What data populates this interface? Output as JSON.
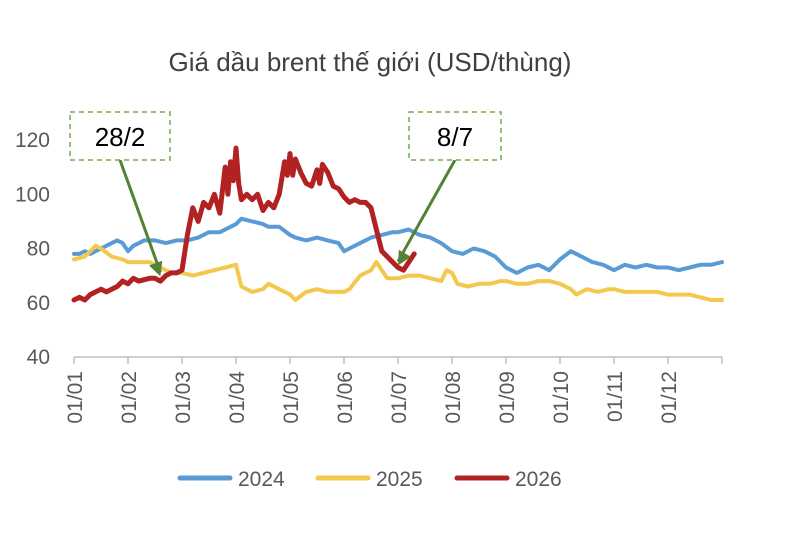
{
  "chart_data": {
    "type": "line",
    "title": "Giá dầu brent thế giới (USD/thùng)",
    "xlabel": "",
    "ylabel": "",
    "x_ticks": [
      "01/01",
      "01/02",
      "01/03",
      "01/04",
      "01/05",
      "01/06",
      "01/07",
      "01/08",
      "01/09",
      "01/10",
      "01/11",
      "01/12"
    ],
    "xlim_months": [
      1,
      13
    ],
    "ylim": [
      40,
      120
    ],
    "y_ticks": [
      40,
      60,
      80,
      100,
      120
    ],
    "grid": false,
    "legend": "bottom",
    "series": [
      {
        "name": "2024",
        "color": "#5B9BD5",
        "points": [
          [
            1.0,
            78
          ],
          [
            1.1,
            78
          ],
          [
            1.2,
            79
          ],
          [
            1.3,
            78
          ],
          [
            1.5,
            80
          ],
          [
            1.7,
            82
          ],
          [
            1.8,
            83
          ],
          [
            1.9,
            82
          ],
          [
            2.0,
            79
          ],
          [
            2.1,
            81
          ],
          [
            2.3,
            83
          ],
          [
            2.5,
            83
          ],
          [
            2.7,
            82
          ],
          [
            2.9,
            83
          ],
          [
            3.0,
            83
          ],
          [
            3.1,
            83
          ],
          [
            3.3,
            84
          ],
          [
            3.5,
            86
          ],
          [
            3.7,
            86
          ],
          [
            3.9,
            88
          ],
          [
            4.0,
            89
          ],
          [
            4.1,
            91
          ],
          [
            4.3,
            90
          ],
          [
            4.5,
            89
          ],
          [
            4.6,
            88
          ],
          [
            4.8,
            88
          ],
          [
            5.0,
            85
          ],
          [
            5.1,
            84
          ],
          [
            5.3,
            83
          ],
          [
            5.5,
            84
          ],
          [
            5.7,
            83
          ],
          [
            5.9,
            82
          ],
          [
            6.0,
            79
          ],
          [
            6.1,
            80
          ],
          [
            6.3,
            82
          ],
          [
            6.5,
            84
          ],
          [
            6.7,
            85
          ],
          [
            6.9,
            86
          ],
          [
            7.0,
            86
          ],
          [
            7.2,
            87
          ],
          [
            7.4,
            85
          ],
          [
            7.6,
            84
          ],
          [
            7.8,
            82
          ],
          [
            8.0,
            79
          ],
          [
            8.2,
            78
          ],
          [
            8.4,
            80
          ],
          [
            8.6,
            79
          ],
          [
            8.8,
            77
          ],
          [
            9.0,
            73
          ],
          [
            9.2,
            71
          ],
          [
            9.4,
            73
          ],
          [
            9.6,
            74
          ],
          [
            9.8,
            72
          ],
          [
            10.0,
            76
          ],
          [
            10.2,
            79
          ],
          [
            10.4,
            77
          ],
          [
            10.6,
            75
          ],
          [
            10.8,
            74
          ],
          [
            11.0,
            72
          ],
          [
            11.2,
            74
          ],
          [
            11.4,
            73
          ],
          [
            11.6,
            74
          ],
          [
            11.8,
            73
          ],
          [
            12.0,
            73
          ],
          [
            12.2,
            72
          ],
          [
            12.4,
            73
          ],
          [
            12.6,
            74
          ],
          [
            12.8,
            74
          ],
          [
            13.0,
            75
          ]
        ]
      },
      {
        "name": "2025",
        "color": "#F2C94C",
        "points": [
          [
            1.0,
            76
          ],
          [
            1.2,
            77
          ],
          [
            1.4,
            81
          ],
          [
            1.5,
            80
          ],
          [
            1.7,
            77
          ],
          [
            1.9,
            76
          ],
          [
            2.0,
            75
          ],
          [
            2.2,
            75
          ],
          [
            2.4,
            75
          ],
          [
            2.6,
            73
          ],
          [
            2.8,
            71
          ],
          [
            3.0,
            71
          ],
          [
            3.2,
            70
          ],
          [
            3.4,
            71
          ],
          [
            3.6,
            72
          ],
          [
            3.8,
            73
          ],
          [
            4.0,
            74
          ],
          [
            4.1,
            66
          ],
          [
            4.3,
            64
          ],
          [
            4.5,
            65
          ],
          [
            4.6,
            67
          ],
          [
            4.8,
            65
          ],
          [
            5.0,
            63
          ],
          [
            5.1,
            61
          ],
          [
            5.3,
            64
          ],
          [
            5.5,
            65
          ],
          [
            5.7,
            64
          ],
          [
            5.9,
            64
          ],
          [
            6.0,
            64
          ],
          [
            6.1,
            65
          ],
          [
            6.3,
            70
          ],
          [
            6.5,
            72
          ],
          [
            6.6,
            75
          ],
          [
            6.7,
            72
          ],
          [
            6.8,
            69
          ],
          [
            7.0,
            69
          ],
          [
            7.2,
            70
          ],
          [
            7.4,
            70
          ],
          [
            7.6,
            69
          ],
          [
            7.8,
            68
          ],
          [
            7.9,
            72
          ],
          [
            8.0,
            71
          ],
          [
            8.1,
            67
          ],
          [
            8.3,
            66
          ],
          [
            8.5,
            67
          ],
          [
            8.7,
            67
          ],
          [
            8.9,
            68
          ],
          [
            9.0,
            68
          ],
          [
            9.2,
            67
          ],
          [
            9.4,
            67
          ],
          [
            9.6,
            68
          ],
          [
            9.8,
            68
          ],
          [
            10.0,
            67
          ],
          [
            10.2,
            65
          ],
          [
            10.3,
            63
          ],
          [
            10.5,
            65
          ],
          [
            10.7,
            64
          ],
          [
            10.9,
            65
          ],
          [
            11.0,
            65
          ],
          [
            11.2,
            64
          ],
          [
            11.4,
            64
          ],
          [
            11.6,
            64
          ],
          [
            11.8,
            64
          ],
          [
            12.0,
            63
          ],
          [
            12.2,
            63
          ],
          [
            12.4,
            63
          ],
          [
            12.6,
            62
          ],
          [
            12.8,
            61
          ],
          [
            13.0,
            61
          ]
        ]
      },
      {
        "name": "2026",
        "color": "#B22222",
        "points": [
          [
            1.0,
            61
          ],
          [
            1.1,
            62
          ],
          [
            1.2,
            61
          ],
          [
            1.3,
            63
          ],
          [
            1.5,
            65
          ],
          [
            1.6,
            64
          ],
          [
            1.8,
            66
          ],
          [
            1.9,
            68
          ],
          [
            2.0,
            67
          ],
          [
            2.1,
            69
          ],
          [
            2.2,
            68
          ],
          [
            2.4,
            69
          ],
          [
            2.5,
            69
          ],
          [
            2.6,
            68
          ],
          [
            2.7,
            70
          ],
          [
            2.8,
            71
          ],
          [
            2.9,
            71
          ],
          [
            3.0,
            72
          ],
          [
            3.1,
            85
          ],
          [
            3.2,
            95
          ],
          [
            3.3,
            90
          ],
          [
            3.4,
            97
          ],
          [
            3.5,
            95
          ],
          [
            3.6,
            100
          ],
          [
            3.7,
            93
          ],
          [
            3.8,
            110
          ],
          [
            3.85,
            100
          ],
          [
            3.9,
            112
          ],
          [
            3.95,
            105
          ],
          [
            4.0,
            117
          ],
          [
            4.05,
            104
          ],
          [
            4.1,
            98
          ],
          [
            4.2,
            100
          ],
          [
            4.3,
            98
          ],
          [
            4.4,
            100
          ],
          [
            4.5,
            94
          ],
          [
            4.6,
            97
          ],
          [
            4.7,
            95
          ],
          [
            4.8,
            100
          ],
          [
            4.9,
            112
          ],
          [
            4.95,
            107
          ],
          [
            5.0,
            115
          ],
          [
            5.05,
            107
          ],
          [
            5.1,
            113
          ],
          [
            5.2,
            108
          ],
          [
            5.3,
            104
          ],
          [
            5.4,
            103
          ],
          [
            5.5,
            109
          ],
          [
            5.55,
            104
          ],
          [
            5.6,
            111
          ],
          [
            5.7,
            108
          ],
          [
            5.8,
            103
          ],
          [
            5.9,
            102
          ],
          [
            6.0,
            99
          ],
          [
            6.1,
            97
          ],
          [
            6.2,
            98
          ],
          [
            6.3,
            97
          ],
          [
            6.4,
            97
          ],
          [
            6.5,
            95
          ],
          [
            6.6,
            87
          ],
          [
            6.7,
            79
          ],
          [
            6.8,
            77
          ],
          [
            6.9,
            75
          ],
          [
            7.0,
            73
          ],
          [
            7.1,
            72
          ],
          [
            7.2,
            75
          ],
          [
            7.3,
            78
          ]
        ]
      }
    ],
    "annotations": [
      {
        "label": "28/2",
        "x": 2.6,
        "y": 69
      },
      {
        "label": "8/7",
        "x": 7.0,
        "y": 73
      }
    ]
  }
}
